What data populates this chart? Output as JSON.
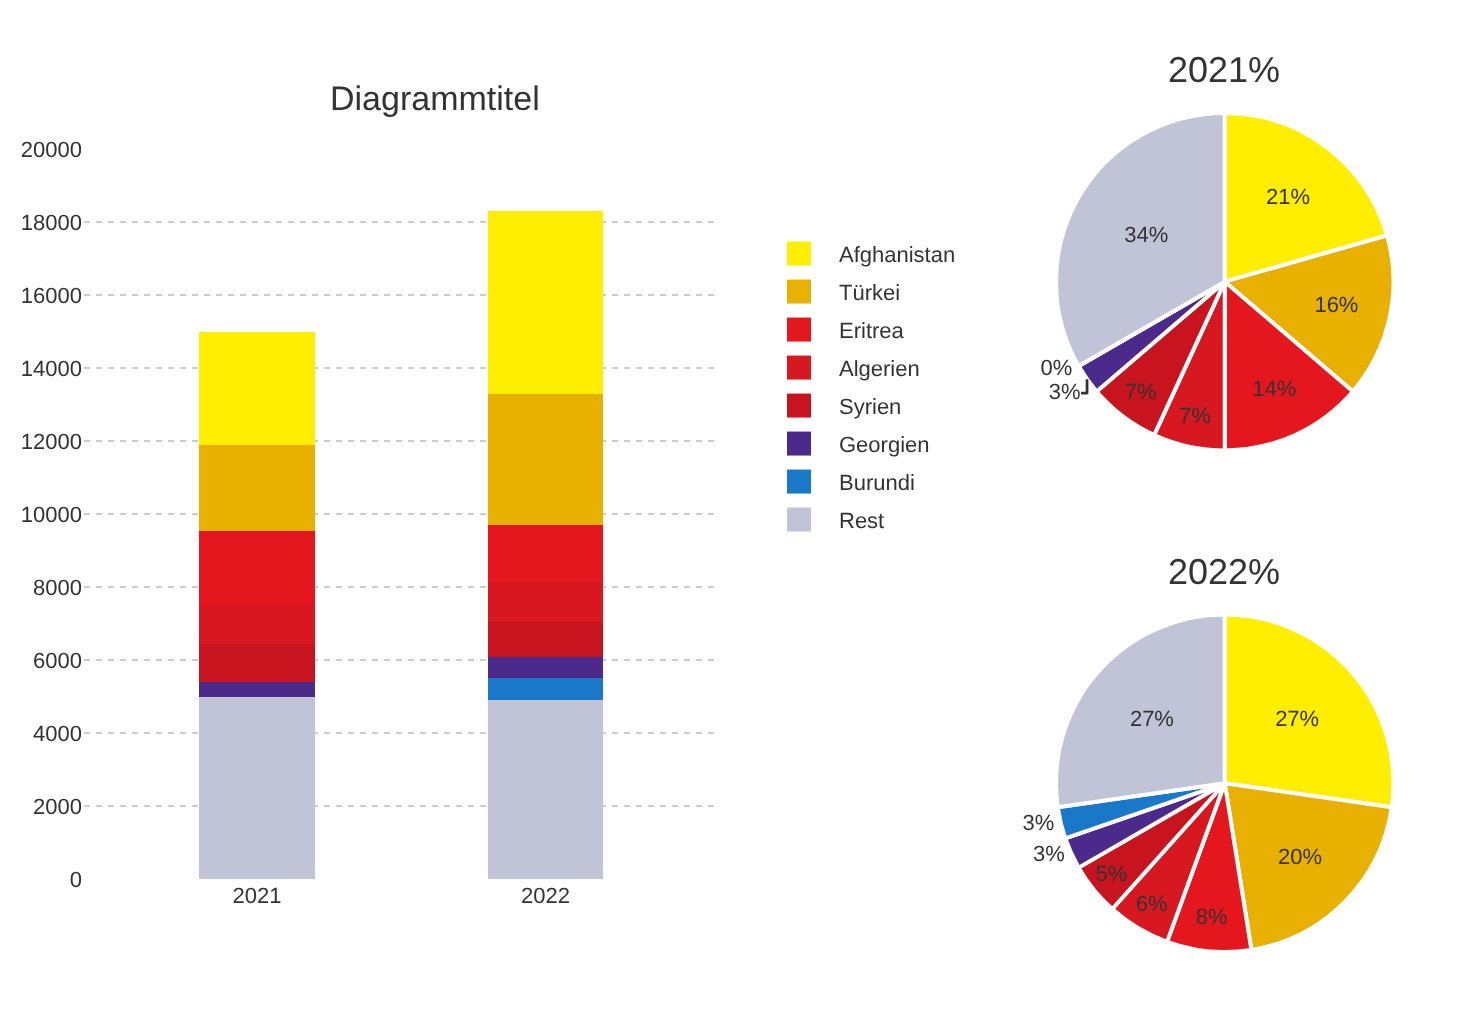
{
  "chart_data": [
    {
      "type": "bar",
      "title": "Diagrammtitel",
      "categories": [
        "2021",
        "2022"
      ],
      "stacked": true,
      "ylim": [
        0,
        20000
      ],
      "yticks": [
        0,
        2000,
        4000,
        6000,
        8000,
        10000,
        12000,
        14000,
        16000,
        18000,
        20000
      ],
      "grid": "y",
      "legend": "right",
      "series": [
        {
          "name": "Rest",
          "color": "#c0c4d6",
          "values": [
            5000,
            4900
          ]
        },
        {
          "name": "Burundi",
          "color": "#1a78c8",
          "values": [
            0,
            600
          ]
        },
        {
          "name": "Georgien",
          "color": "#4b2a8c",
          "values": [
            400,
            600
          ]
        },
        {
          "name": "Syrien",
          "color": "#c8141e",
          "values": [
            1050,
            950
          ]
        },
        {
          "name": "Algerien",
          "color": "#d81820",
          "values": [
            1050,
            1100
          ]
        },
        {
          "name": "Eritrea",
          "color": "#e4161e",
          "values": [
            2050,
            1550
          ]
        },
        {
          "name": "Türkei",
          "color": "#e8b000",
          "values": [
            2350,
            3600
          ]
        },
        {
          "name": "Afghanistan",
          "color": "#ffee00",
          "values": [
            3100,
            5000
          ]
        }
      ]
    },
    {
      "type": "pie",
      "title": "2021%",
      "categories": [
        null,
        null,
        null,
        null,
        null,
        null,
        null,
        null
      ],
      "values": [
        21,
        16,
        14,
        7,
        7,
        3,
        0,
        34
      ],
      "value_labels": [
        "21%",
        "16%",
        "14%",
        "7%",
        "7%",
        "3%",
        "0%",
        "34%"
      ],
      "colors": [
        "#ffee00",
        "#e8b000",
        "#e4161e",
        "#d81820",
        "#c8141e",
        "#4b2a8c",
        "#1a78c8",
        "#c0c4d6"
      ]
    },
    {
      "type": "pie",
      "title": "2022%",
      "categories": [
        null,
        null,
        null,
        null,
        null,
        null,
        null,
        null
      ],
      "values": [
        27,
        20,
        8,
        6,
        5,
        3,
        3,
        27
      ],
      "value_labels": [
        "27%",
        "20%",
        "8%",
        "6%",
        "5%",
        "3%",
        "3%",
        "27%"
      ],
      "colors": [
        "#ffee00",
        "#e8b000",
        "#e4161e",
        "#d81820",
        "#c8141e",
        "#4b2a8c",
        "#1a78c8",
        "#c0c4d6"
      ]
    }
  ]
}
